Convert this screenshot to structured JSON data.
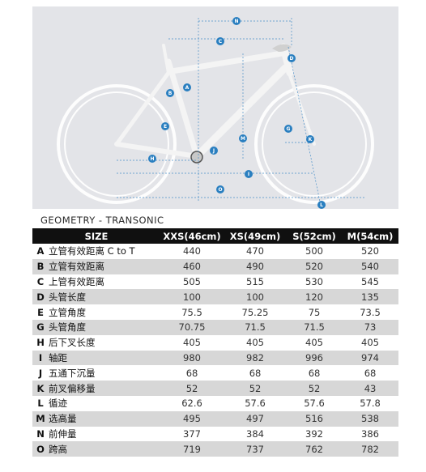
{
  "title": "GEOMETRY - TRANSONIC",
  "diagram_labels": [
    "A",
    "B",
    "C",
    "D",
    "E",
    "G",
    "H",
    "J",
    "K",
    "L",
    "M",
    "N",
    "O",
    "I"
  ],
  "table": {
    "columns": [
      "SIZE",
      "XXS(46cm)",
      "XS(49cm)",
      "S(52cm)",
      "M(54cm)"
    ],
    "rows": [
      {
        "code": "A",
        "name": "立管有效距离 C to T",
        "values": [
          "440",
          "470",
          "500",
          "520"
        ]
      },
      {
        "code": "B",
        "name": "立管有效距离",
        "values": [
          "460",
          "490",
          "520",
          "540"
        ]
      },
      {
        "code": "C",
        "name": "上管有效距离",
        "values": [
          "505",
          "515",
          "530",
          "545"
        ]
      },
      {
        "code": "D",
        "name": "头管长度",
        "values": [
          "100",
          "100",
          "120",
          "135"
        ]
      },
      {
        "code": "E",
        "name": "立管角度",
        "values": [
          "75.5",
          "75.25",
          "75",
          "73.5"
        ]
      },
      {
        "code": "G",
        "name": "头管角度",
        "values": [
          "70.75",
          "71.5",
          "71.5",
          "73"
        ]
      },
      {
        "code": "H",
        "name": "后下叉长度",
        "values": [
          "405",
          "405",
          "405",
          "405"
        ]
      },
      {
        "code": "I",
        "name": "轴距",
        "values": [
          "980",
          "982",
          "996",
          "974"
        ]
      },
      {
        "code": "J",
        "name": "五通下沉量",
        "values": [
          "68",
          "68",
          "68",
          "68"
        ]
      },
      {
        "code": "K",
        "name": "前叉偏移量",
        "values": [
          "52",
          "52",
          "52",
          "43"
        ]
      },
      {
        "code": "L",
        "name": "循迹",
        "values": [
          "62.6",
          "57.6",
          "57.6",
          "57.8"
        ]
      },
      {
        "code": "M",
        "name": "选高量",
        "values": [
          "495",
          "497",
          "516",
          "538"
        ]
      },
      {
        "code": "N",
        "name": "前伸量",
        "values": [
          "377",
          "384",
          "392",
          "386"
        ]
      },
      {
        "code": "O",
        "name": "跨高",
        "values": [
          "719",
          "737",
          "762",
          "782"
        ]
      }
    ]
  },
  "colors": {
    "marker": "#2a7fc0",
    "dim_line": "#4a8fc8",
    "frame": "#f4f4f4",
    "wheel": "#fdfdfd",
    "panel": "#e3e4e8",
    "header": "#101010",
    "row_alt": "#d7d7d7"
  }
}
